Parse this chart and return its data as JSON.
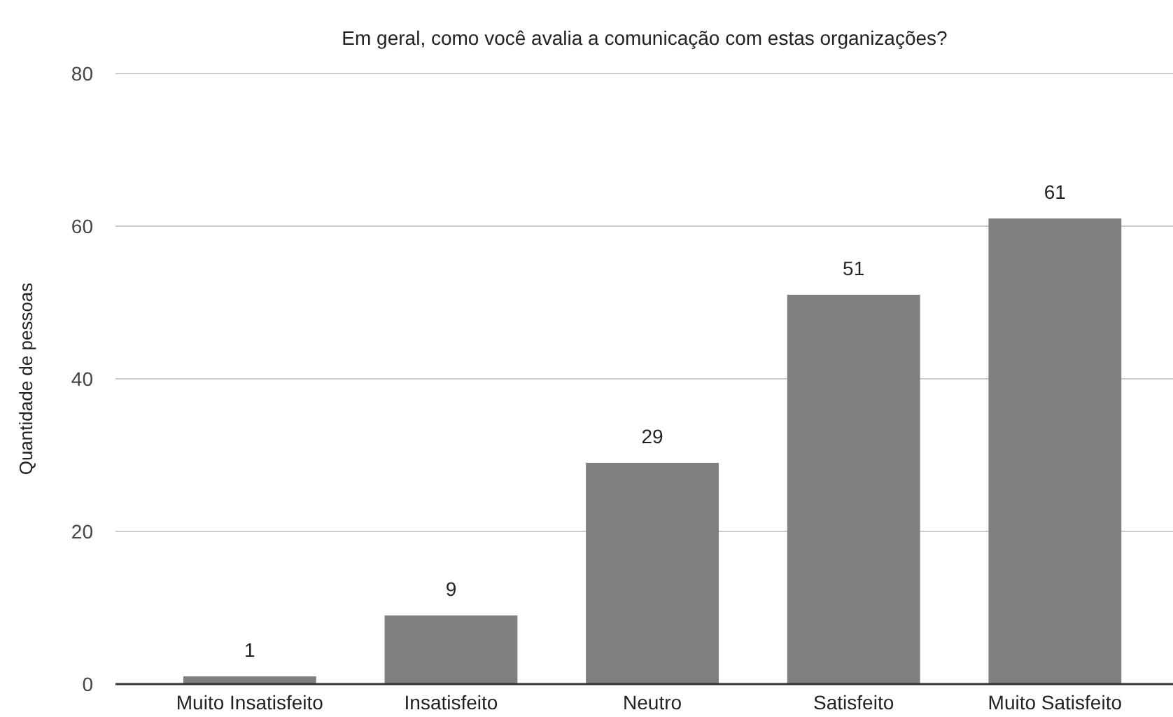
{
  "chart_data": {
    "type": "bar",
    "title": "Em geral, como você avalia a comunicação com estas organizações?",
    "ylabel": "Quantidade de pessoas",
    "categories": [
      "Muito Insatisfeito",
      "Insatisfeito",
      "Neutro",
      "Satisfeito",
      "Muito Satisfeito"
    ],
    "values": [
      1,
      9,
      29,
      51,
      61
    ],
    "color": "#7f7f7f",
    "ylim": [
      0,
      80
    ],
    "yticks": [
      0,
      20,
      40,
      60,
      80
    ],
    "grid": "y",
    "data_labels": true
  }
}
